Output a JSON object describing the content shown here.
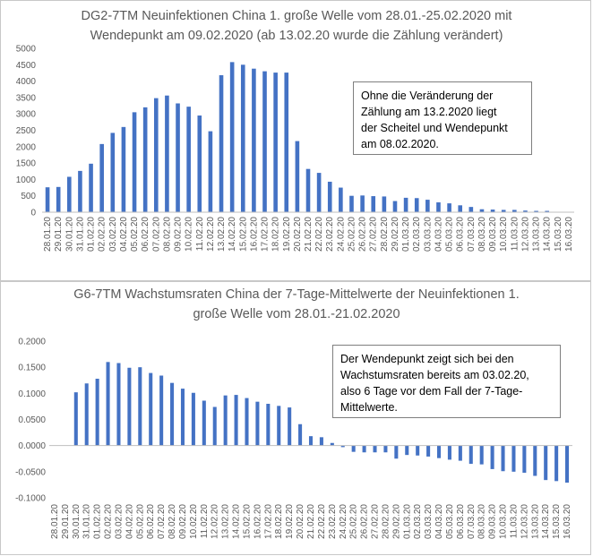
{
  "colors": {
    "bar": "#4472c4",
    "text": "#595959",
    "axis": "#bfbfbf",
    "grid": "#d9d9d9"
  },
  "chart_data": [
    {
      "type": "bar",
      "title": [
        "DG2-7TM Neuinfektionen China 1. große Welle vom 28.01.-25.02.2020 mit",
        "Wendepunkt am 09.02.2020 (ab 13.02.20 wurde die Zählung verändert)"
      ],
      "categories": [
        "28.01.20",
        "29.01.20",
        "30.01.20",
        "31.01.20",
        "01.02.20",
        "02.02.20",
        "03.02.20",
        "04.02.20",
        "05.02.20",
        "06.02.20",
        "07.02.20",
        "08.02.20",
        "09.02.20",
        "10.02.20",
        "11.02.20",
        "12.02.20",
        "13.02.20",
        "14.02.20",
        "15.02.20",
        "16.02.20",
        "17.02.20",
        "18.02.20",
        "19.02.20",
        "20.02.20",
        "21.02.20",
        "22.02.20",
        "23.02.20",
        "24.02.20",
        "25.02.20",
        "26.02.20",
        "27.02.20",
        "28.02.20",
        "29.02.20",
        "01.03.20",
        "02.03.20",
        "03.03.20",
        "04.03.20",
        "05.03.20",
        "06.03.20",
        "07.03.20",
        "08.03.20",
        "09.03.20",
        "10.03.20",
        "11.03.20",
        "12.03.20",
        "13.03.20",
        "14.03.20",
        "15.03.20",
        "16.03.20"
      ],
      "values": [
        760,
        770,
        1080,
        1260,
        1480,
        2080,
        2420,
        2600,
        3050,
        3200,
        3480,
        3560,
        3320,
        3220,
        2950,
        2470,
        4180,
        4580,
        4500,
        4380,
        4300,
        4260,
        4260,
        2170,
        1320,
        1200,
        930,
        750,
        500,
        510,
        490,
        480,
        340,
        440,
        430,
        380,
        300,
        270,
        210,
        160,
        90,
        80,
        70,
        70,
        50,
        40,
        40,
        0,
        0
      ],
      "ylim": [
        0,
        5000
      ],
      "yticks": [
        "0",
        "500",
        "1000",
        "1500",
        "2000",
        "2500",
        "3000",
        "3500",
        "4000",
        "4500",
        "5000"
      ],
      "grid": false,
      "annotation": [
        "Ohne die Veränderung der",
        "Zählung am 13.2.2020 liegt",
        "der Scheitel und Wendepunkt",
        "am 08.02.2020."
      ]
    },
    {
      "type": "bar",
      "title": [
        "G6-7TM Wachstumsraten China der 7-Tage-Mittelwerte der Neuinfektionen  1.",
        "große Welle vom 28.01.-21.02.2020"
      ],
      "categories": [
        "28.01.20",
        "29.01.20",
        "30.01.20",
        "31.01.20",
        "01.02.20",
        "02.02.20",
        "03.02.20",
        "04.02.20",
        "05.02.20",
        "06.02.20",
        "07.02.20",
        "08.02.20",
        "09.02.20",
        "10.02.20",
        "11.02.20",
        "12.02.20",
        "13.02.20",
        "14.02.20",
        "15.02.20",
        "16.02.20",
        "17.02.20",
        "18.02.20",
        "19.02.20",
        "20.02.20",
        "21.02.20",
        "22.02.20",
        "23.02.20",
        "24.02.20",
        "25.02.20",
        "26.02.20",
        "27.02.20",
        "28.02.20",
        "29.02.20",
        "01.03.20",
        "02.03.20",
        "03.03.20",
        "04.03.20",
        "05.03.20",
        "06.03.20",
        "07.03.20",
        "08.03.20",
        "09.03.20",
        "10.03.20",
        "11.03.20",
        "12.03.20",
        "13.03.20",
        "14.03.20",
        "15.03.20",
        "16.03.20"
      ],
      "values": [
        0,
        0,
        0.102,
        0.119,
        0.128,
        0.16,
        0.158,
        0.149,
        0.15,
        0.139,
        0.134,
        0.12,
        0.109,
        0.101,
        0.086,
        0.074,
        0.096,
        0.097,
        0.091,
        0.084,
        0.08,
        0.076,
        0.073,
        0.041,
        0.018,
        0.016,
        0.005,
        -0.003,
        -0.012,
        -0.013,
        -0.013,
        -0.013,
        -0.025,
        -0.018,
        -0.019,
        -0.021,
        -0.024,
        -0.027,
        -0.029,
        -0.035,
        -0.036,
        -0.045,
        -0.049,
        -0.05,
        -0.052,
        -0.058,
        -0.066,
        -0.068,
        -0.071
      ],
      "ylim": [
        -0.1,
        0.2
      ],
      "yticks": [
        "-0.1000",
        "-0.0500",
        "0.0000",
        "0.0500",
        "0.1000",
        "0.1500",
        "0.2000"
      ],
      "grid": false,
      "annotation": [
        "Der Wendepunkt zeigt sich bei den",
        "Wachstumsraten bereits am 03.02.20,",
        "also 6 Tage vor dem Fall der 7-Tage-",
        "Mittelwerte."
      ]
    }
  ]
}
